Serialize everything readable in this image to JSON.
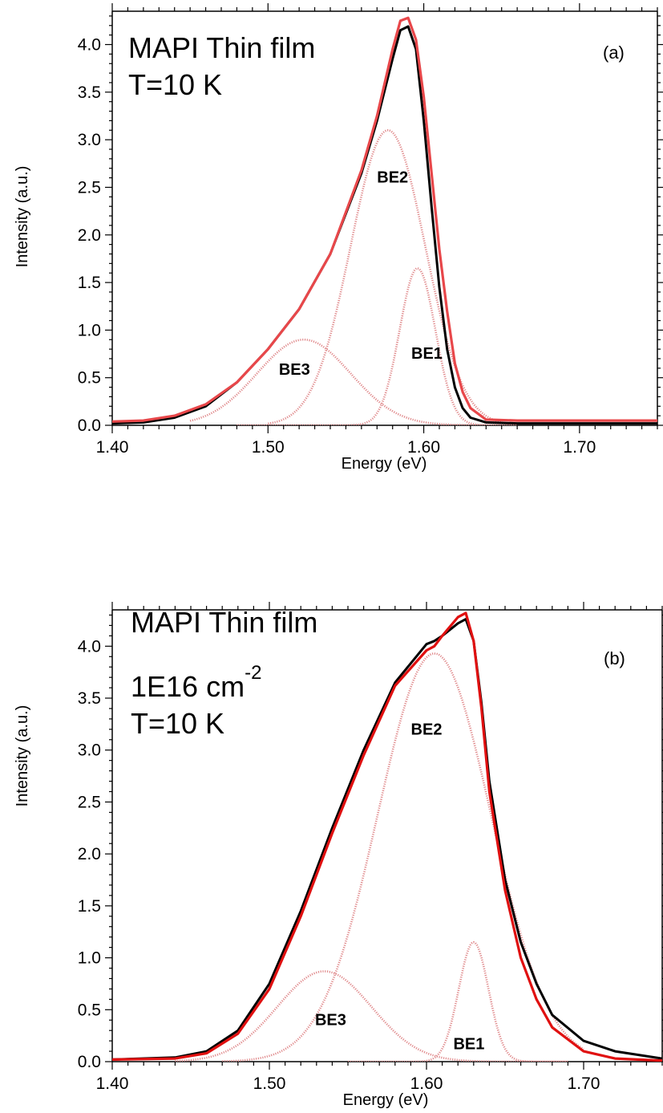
{
  "chart_data": [
    {
      "type": "line",
      "panel_label": "(a)",
      "annotation_lines": [
        "MAPI Thin film",
        "T=10 K"
      ],
      "annotation_superscript": "",
      "xlabel": "Energy (eV)",
      "ylabel": "Intensity (a.u.)",
      "xlim": [
        1.4,
        1.75
      ],
      "ylim": [
        0,
        4.35
      ],
      "x_ticks": [
        "1.40",
        "1.50",
        "1.60",
        "1.70"
      ],
      "y_ticks": [
        "0.0",
        "0.5",
        "1.0",
        "1.5",
        "2.0",
        "2.5",
        "3.0",
        "3.5",
        "4.0"
      ],
      "colors": {
        "measured": "#000000",
        "fit": "#e8474a",
        "component": "#e08a8c"
      },
      "series": [
        {
          "role": "measured",
          "x": [
            1.4,
            1.42,
            1.44,
            1.46,
            1.48,
            1.5,
            1.52,
            1.54,
            1.56,
            1.57,
            1.58,
            1.585,
            1.59,
            1.595,
            1.6,
            1.605,
            1.61,
            1.615,
            1.62,
            1.625,
            1.63,
            1.64,
            1.66,
            1.7,
            1.75
          ],
          "y": [
            0.02,
            0.03,
            0.08,
            0.2,
            0.45,
            0.8,
            1.22,
            1.8,
            2.65,
            3.2,
            3.85,
            4.15,
            4.19,
            3.95,
            3.2,
            2.3,
            1.45,
            0.8,
            0.4,
            0.18,
            0.08,
            0.03,
            0.02,
            0.02,
            0.02
          ]
        },
        {
          "role": "fit",
          "x": [
            1.4,
            1.42,
            1.44,
            1.46,
            1.48,
            1.5,
            1.52,
            1.54,
            1.56,
            1.57,
            1.58,
            1.585,
            1.59,
            1.595,
            1.6,
            1.605,
            1.61,
            1.615,
            1.62,
            1.625,
            1.63,
            1.64,
            1.66,
            1.7,
            1.75
          ],
          "y": [
            0.04,
            0.05,
            0.1,
            0.22,
            0.45,
            0.8,
            1.22,
            1.8,
            2.68,
            3.25,
            3.95,
            4.25,
            4.28,
            4.05,
            3.45,
            2.65,
            1.85,
            1.2,
            0.65,
            0.35,
            0.18,
            0.06,
            0.05,
            0.05,
            0.05
          ]
        },
        {
          "role": "component",
          "name": "BE1",
          "center": 1.596,
          "amplitude": 1.65,
          "sigma": 0.0115,
          "xrange": [
            1.48,
            1.66
          ]
        },
        {
          "role": "component",
          "name": "BE2",
          "center": 1.577,
          "amplitude": 3.1,
          "sigma": 0.024,
          "xrange": [
            1.5,
            1.66
          ]
        },
        {
          "role": "component",
          "name": "BE3",
          "center": 1.523,
          "amplitude": 0.9,
          "sigma": 0.03,
          "xrange": [
            1.45,
            1.66
          ]
        }
      ],
      "labels": [
        {
          "text": "BE2",
          "x": 1.58,
          "y": 2.55
        },
        {
          "text": "BE1",
          "x": 1.602,
          "y": 0.7
        },
        {
          "text": "BE3",
          "x": 1.517,
          "y": 0.53
        }
      ]
    },
    {
      "type": "line",
      "panel_label": "(b)",
      "annotation_lines": [
        "MAPI Thin film",
        "1E16 cm",
        "T=10 K"
      ],
      "annotation_superscript": "-2",
      "xlabel": "Energy (eV)",
      "ylabel": "Intensity (a.u.)",
      "xlim": [
        1.4,
        1.75
      ],
      "ylim": [
        0,
        4.35
      ],
      "x_ticks": [
        "1.40",
        "1.50",
        "1.60",
        "1.70"
      ],
      "y_ticks": [
        "0.0",
        "0.5",
        "1.0",
        "1.5",
        "2.0",
        "2.5",
        "3.0",
        "3.5",
        "4.0"
      ],
      "colors": {
        "measured": "#000000",
        "fit": "#e01010",
        "component": "#e08a8c"
      },
      "series": [
        {
          "role": "measured",
          "x": [
            1.4,
            1.44,
            1.46,
            1.48,
            1.5,
            1.52,
            1.54,
            1.56,
            1.58,
            1.6,
            1.605,
            1.61,
            1.62,
            1.625,
            1.63,
            1.635,
            1.64,
            1.65,
            1.66,
            1.67,
            1.68,
            1.7,
            1.72,
            1.75
          ],
          "y": [
            0.02,
            0.04,
            0.1,
            0.3,
            0.75,
            1.45,
            2.25,
            3.0,
            3.65,
            4.02,
            4.05,
            4.1,
            4.22,
            4.26,
            4.05,
            3.45,
            2.7,
            1.75,
            1.15,
            0.75,
            0.45,
            0.2,
            0.1,
            0.03
          ]
        },
        {
          "role": "fit",
          "x": [
            1.4,
            1.44,
            1.46,
            1.48,
            1.5,
            1.52,
            1.54,
            1.56,
            1.58,
            1.6,
            1.605,
            1.61,
            1.62,
            1.625,
            1.63,
            1.635,
            1.64,
            1.65,
            1.66,
            1.67,
            1.68,
            1.7,
            1.72,
            1.75
          ],
          "y": [
            0.02,
            0.03,
            0.08,
            0.27,
            0.7,
            1.4,
            2.2,
            2.95,
            3.62,
            3.96,
            4.0,
            4.1,
            4.28,
            4.32,
            4.05,
            3.4,
            2.6,
            1.65,
            1.0,
            0.6,
            0.33,
            0.1,
            0.03,
            0.01
          ]
        },
        {
          "role": "component",
          "name": "BE1",
          "center": 1.63,
          "amplitude": 1.15,
          "sigma": 0.0095,
          "xrange": [
            1.55,
            1.69
          ]
        },
        {
          "role": "component",
          "name": "BE2",
          "center": 1.605,
          "amplitude": 3.93,
          "sigma": 0.036,
          "xrange": [
            1.47,
            1.7
          ]
        },
        {
          "role": "component",
          "name": "BE3",
          "center": 1.535,
          "amplitude": 0.87,
          "sigma": 0.03,
          "xrange": [
            1.44,
            1.69
          ]
        }
      ],
      "labels": [
        {
          "text": "BE2",
          "x": 1.6,
          "y": 3.15
        },
        {
          "text": "BE3",
          "x": 1.539,
          "y": 0.35
        },
        {
          "text": "BE1",
          "x": 1.627,
          "y": 0.12
        }
      ]
    }
  ]
}
